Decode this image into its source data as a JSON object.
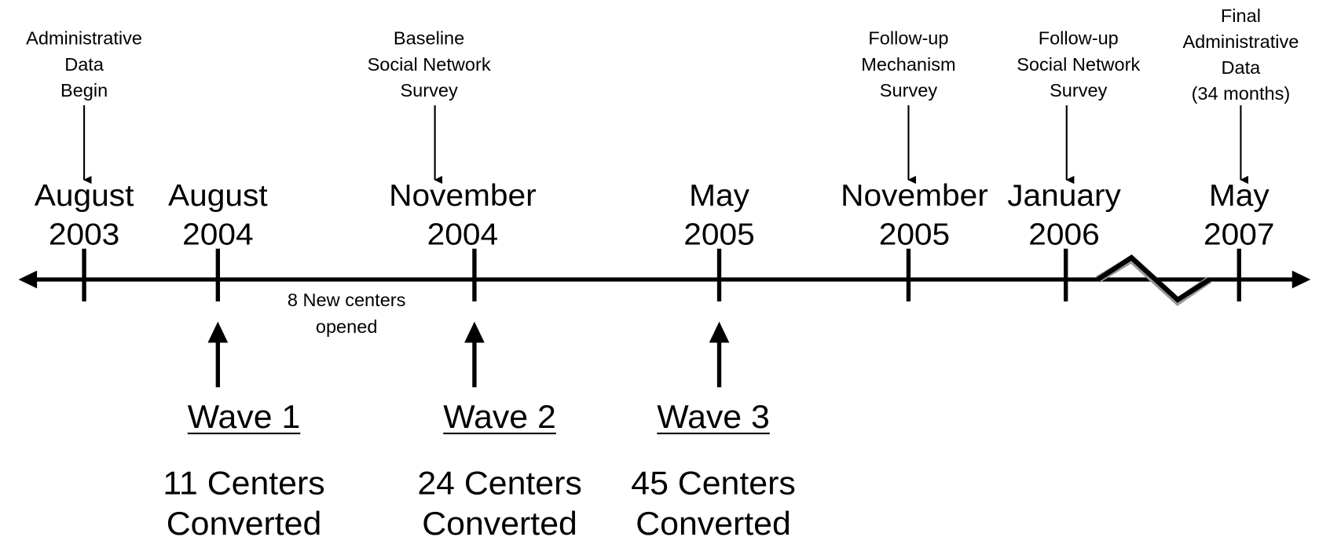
{
  "ticks": [
    {
      "label": [
        "August",
        "2003"
      ]
    },
    {
      "label": [
        "August",
        "2004"
      ]
    },
    {
      "label": [
        "November",
        "2004"
      ]
    },
    {
      "label": [
        "May",
        "2005"
      ]
    },
    {
      "label": [
        "November",
        "2005"
      ]
    },
    {
      "label": [
        "January",
        "2006"
      ]
    },
    {
      "label": [
        "May",
        "2007"
      ]
    }
  ],
  "top_notes": [
    {
      "lines": [
        "Administrative",
        "Data",
        "Begin"
      ]
    },
    {
      "lines": [
        "Baseline",
        "Social Network",
        "Survey"
      ]
    },
    {
      "lines": [
        "Follow-up",
        "Mechanism",
        "Survey"
      ]
    },
    {
      "lines": [
        "Follow-up",
        "Social Network",
        "Survey"
      ]
    },
    {
      "lines": [
        "Final",
        "Administrative",
        "Data",
        "(34 months)"
      ]
    }
  ],
  "note": [
    "8 New centers",
    "opened"
  ],
  "waves": [
    {
      "title": "Wave 1",
      "detail": [
        "11 Centers",
        "Converted"
      ]
    },
    {
      "title": "Wave 2",
      "detail": [
        "24 Centers",
        "Converted"
      ]
    },
    {
      "title": "Wave 3",
      "detail": [
        "45 Centers",
        "Converted"
      ]
    }
  ]
}
